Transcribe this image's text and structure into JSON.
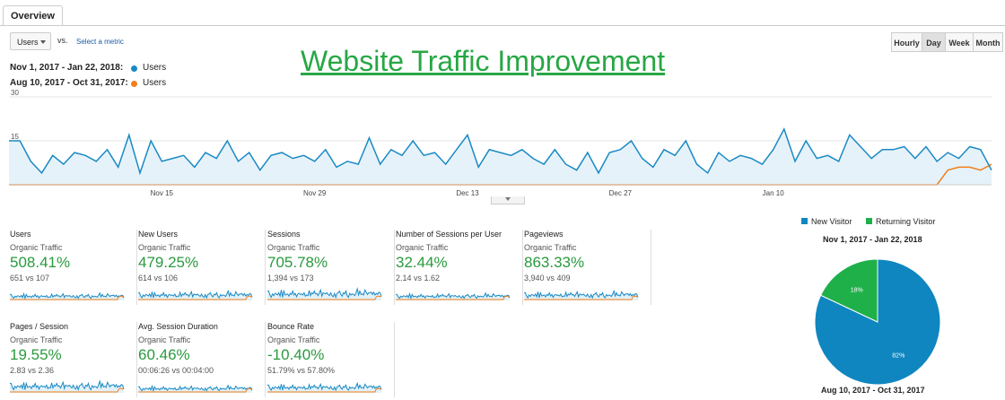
{
  "tabs": [
    {
      "label": "Overview"
    }
  ],
  "controls": {
    "metric_select": "Users",
    "vs": "vs.",
    "select_metric": "Select a metric",
    "granularity": [
      "Hourly",
      "Day",
      "Week",
      "Month"
    ],
    "granularity_active": "Day"
  },
  "ranges": {
    "current_label": "Nov 1, 2017 - Jan 22, 2018:",
    "current_series": "Users",
    "previous_label": "Aug 10, 2017 - Oct 31, 2017:",
    "previous_series": "Users"
  },
  "overlay_title": "Website Traffic Improvement",
  "colors": {
    "current": "#1a8ac4",
    "previous": "#f07f1c",
    "accent_green": "#2a9a3e",
    "new_visitor": "#0f86c0",
    "returning_visitor": "#1fb04a"
  },
  "chart_data": [
    {
      "type": "area",
      "y_ticks": [
        "30",
        "15"
      ],
      "ylim": [
        0,
        30
      ],
      "x_tick_labels": [
        "Nov 15",
        "Nov 29",
        "Dec 13",
        "Dec 27",
        "Jan 10"
      ],
      "x_tick_index": [
        14,
        28,
        42,
        56,
        70
      ],
      "series": [
        {
          "name": "Users",
          "values": [
            15,
            15,
            8,
            4,
            10,
            7,
            11,
            10,
            8,
            12,
            6,
            17,
            4,
            15,
            8,
            9,
            10,
            6,
            11,
            9,
            15,
            8,
            11,
            5,
            10,
            11,
            9,
            10,
            8,
            12,
            6,
            8,
            7,
            16,
            7,
            12,
            10,
            15,
            10,
            11,
            7,
            12,
            17,
            6,
            12,
            11,
            10,
            12,
            9,
            7,
            12,
            7,
            5,
            11,
            4,
            11,
            12,
            15,
            9,
            6,
            12,
            10,
            15,
            7,
            4,
            11,
            8,
            10,
            9,
            7,
            12,
            19,
            8,
            15,
            9,
            10,
            8,
            17,
            13,
            9,
            12,
            12,
            13,
            9,
            13,
            8,
            11,
            9,
            13,
            12,
            5
          ]
        },
        {
          "name": "Users",
          "values": [
            0,
            0,
            0,
            0,
            0,
            0,
            0,
            0,
            0,
            0,
            0,
            0,
            0,
            0,
            0,
            0,
            0,
            0,
            0,
            0,
            0,
            0,
            0,
            0,
            0,
            0,
            0,
            0,
            0,
            0,
            0,
            0,
            0,
            0,
            0,
            0,
            0,
            0,
            0,
            0,
            0,
            0,
            0,
            0,
            0,
            0,
            0,
            0,
            0,
            0,
            0,
            0,
            0,
            0,
            0,
            0,
            0,
            0,
            0,
            0,
            0,
            0,
            0,
            0,
            0,
            0,
            0,
            0,
            0,
            0,
            0,
            0,
            0,
            0,
            0,
            0,
            0,
            0,
            0,
            0,
            0,
            0,
            0,
            0,
            0,
            0,
            5,
            6,
            6,
            5,
            7
          ]
        }
      ]
    },
    {
      "type": "pie",
      "slices": [
        {
          "label": "New Visitor",
          "value": 82,
          "text": "82%"
        },
        {
          "label": "Returning Visitor",
          "value": 18,
          "text": "18%"
        }
      ]
    }
  ],
  "pie": {
    "legend_new": "New Visitor",
    "legend_returning": "Returning Visitor",
    "title_top": "Nov 1, 2017 - Jan 22, 2018",
    "title_bottom": "Aug 10, 2017 - Oct 31, 2017"
  },
  "metrics": [
    {
      "name": "Users",
      "segment": "Organic Traffic",
      "percent": "508.41%",
      "compare": "651 vs 107"
    },
    {
      "name": "New Users",
      "segment": "Organic Traffic",
      "percent": "479.25%",
      "compare": "614 vs 106"
    },
    {
      "name": "Sessions",
      "segment": "Organic Traffic",
      "percent": "705.78%",
      "compare": "1,394 vs 173"
    },
    {
      "name": "Number of Sessions per User",
      "segment": "Organic Traffic",
      "percent": "32.44%",
      "compare": "2.14 vs 1.62"
    },
    {
      "name": "Pageviews",
      "segment": "Organic Traffic",
      "percent": "863.33%",
      "compare": "3,940 vs 409"
    },
    {
      "name": "Pages / Session",
      "segment": "Organic Traffic",
      "percent": "19.55%",
      "compare": "2.83 vs 2.36"
    },
    {
      "name": "Avg. Session Duration",
      "segment": "Organic Traffic",
      "percent": "60.46%",
      "compare": "00:06:26 vs 00:04:00"
    },
    {
      "name": "Bounce Rate",
      "segment": "Organic Traffic",
      "percent": "-10.40%",
      "compare": "51.79% vs 57.80%"
    }
  ]
}
